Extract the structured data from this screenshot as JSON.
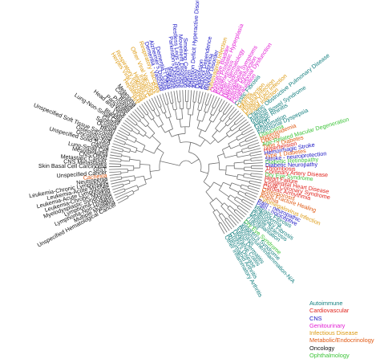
{
  "colors": {
    "Autoimmune": "#147f7f",
    "Cardiovascular": "#e0241d",
    "CNS": "#1a16c4",
    "Genitourinary": "#e31fd4",
    "Infectious Disease": "#dd9a12",
    "Metabolic/Endocrinology": "#e05a14",
    "Oncology": "#111111",
    "Ophthalmology": "#3ec43a"
  },
  "legend": [
    {
      "label": "Autoimmune",
      "category": "Autoimmune"
    },
    {
      "label": "Cardiovascular",
      "category": "Cardiovascular"
    },
    {
      "label": "CNS",
      "category": "CNS"
    },
    {
      "label": "Genitourinary",
      "category": "Genitourinary"
    },
    {
      "label": "Infectious Disease",
      "category": "Infectious Disease"
    },
    {
      "label": "Metabolic/Endocrinology",
      "category": "Metabolic/Endocrinology"
    },
    {
      "label": "Oncology",
      "category": "Oncology"
    },
    {
      "label": "Ophthalmology",
      "category": "Ophthalmology"
    }
  ],
  "leaves": [
    {
      "label": "Unspecified Hematological Cancer",
      "category": "Oncology"
    },
    {
      "label": "Multiple Myeloma",
      "category": "Oncology"
    },
    {
      "label": "Lymphoma-Non-Hodgkin",
      "category": "Oncology"
    },
    {
      "label": "Lymphoma-Hodgkin",
      "category": "Oncology"
    },
    {
      "label": "Myelodysplastic Syndromes",
      "category": "Oncology"
    },
    {
      "label": "Leukemia-Chronic Myeloid",
      "category": "Oncology"
    },
    {
      "label": "Leukemia-Acute Lymphocytic",
      "category": "Oncology"
    },
    {
      "label": "Leukemia-Acute Myeloid",
      "category": "Oncology"
    },
    {
      "label": "Leukemia-Chronic Lymphocytic",
      "category": "Oncology"
    },
    {
      "label": "Neutropenia",
      "category": "Oncology"
    },
    {
      "label": "Cachexia",
      "category": "Metabolic/Endocrinology"
    },
    {
      "label": "Unspecified Cancer",
      "category": "Oncology"
    },
    {
      "label": "GIST",
      "category": "Oncology"
    },
    {
      "label": "Skin Basal Cell Carcinoma",
      "category": "Oncology"
    },
    {
      "label": "CNS Metastases",
      "category": "Oncology"
    },
    {
      "label": "Metastatic Cancer",
      "category": "Oncology"
    },
    {
      "label": "CNS-Other",
      "category": "Oncology"
    },
    {
      "label": "Mesothelioma",
      "category": "Oncology"
    },
    {
      "label": "Lung-Small Cell",
      "category": "Oncology"
    },
    {
      "label": "Glioma",
      "category": "Oncology"
    },
    {
      "label": "Unspecified Solid Tumor",
      "category": "Oncology"
    },
    {
      "label": "Oncology-N/A",
      "category": "Oncology"
    },
    {
      "label": "Osteosarcoma",
      "category": "Oncology"
    },
    {
      "label": "Unspecified Soft Tissue Sarcoma",
      "category": "Oncology"
    },
    {
      "label": "Renal",
      "category": "Oncology"
    },
    {
      "label": "Ovarian",
      "category": "Oncology"
    },
    {
      "label": "Sarcoma",
      "category": "Oncology"
    },
    {
      "label": "Gastric",
      "category": "Oncology"
    },
    {
      "label": "Lung-Non-Small Cell",
      "category": "Oncology"
    },
    {
      "label": "Bladder",
      "category": "Oncology"
    },
    {
      "label": "Liver",
      "category": "Oncology"
    },
    {
      "label": "Head and Neck",
      "category": "Oncology"
    },
    {
      "label": "Pancreatic",
      "category": "Oncology"
    },
    {
      "label": "Prostate",
      "category": "Oncology"
    },
    {
      "label": "Breast",
      "category": "Oncology"
    },
    {
      "label": "Colorectal",
      "category": "Oncology"
    },
    {
      "label": "Melanoma",
      "category": "Oncology"
    },
    {
      "label": "HIV",
      "category": "Infectious Disease"
    },
    {
      "label": "Hepatitis B",
      "category": "Infectious Disease"
    },
    {
      "label": "Herpes Viral Vaccines",
      "category": "Infectious Disease"
    },
    {
      "label": "Respiratory Infections",
      "category": "Infectious Disease"
    },
    {
      "label": "Hepatitis C",
      "category": "Infectious Disease"
    },
    {
      "label": "Influenza",
      "category": "Infectious Disease"
    },
    {
      "label": "Other Viral Vaccines",
      "category": "Infectious Disease"
    },
    {
      "label": "RSV",
      "category": "Infectious Disease"
    },
    {
      "label": "Respiratory Vaccines",
      "category": "Infectious Disease"
    },
    {
      "label": "Dementia - Vascular",
      "category": "CNS"
    },
    {
      "label": "Alzheimer's Disease",
      "category": "CNS"
    },
    {
      "label": "Dementia - Other",
      "category": "CNS"
    },
    {
      "label": "Epilepsy",
      "category": "CNS"
    },
    {
      "label": "Migraine",
      "category": "CNS"
    },
    {
      "label": "Parkinson's Disease",
      "category": "CNS"
    },
    {
      "label": "Restless Legs Syndrome",
      "category": "CNS"
    },
    {
      "label": "Movement Disorders",
      "category": "CNS"
    },
    {
      "label": "Smoking Cessation",
      "category": "CNS"
    },
    {
      "label": "Autism",
      "category": "CNS"
    },
    {
      "label": "Attention Deficit Hyperactive Disorder",
      "category": "CNS"
    },
    {
      "label": "Anxiety",
      "category": "CNS"
    },
    {
      "label": "Depression",
      "category": "CNS"
    },
    {
      "label": "Alcohol Dependence",
      "category": "CNS"
    },
    {
      "label": "Schizophrenia",
      "category": "CNS"
    },
    {
      "label": "Bipolar Disorder",
      "category": "CNS"
    },
    {
      "label": "Vulvovaginal Infection",
      "category": "Infectious Disease"
    },
    {
      "label": "Overactive Bladder",
      "category": "Genitourinary"
    },
    {
      "label": "Benign Prostatic Hyperplasia",
      "category": "Genitourinary"
    },
    {
      "label": "Endometriosis",
      "category": "Genitourinary"
    },
    {
      "label": "Other - dermatology",
      "category": "Genitourinary"
    },
    {
      "label": "Hyperhidrosis",
      "category": "Genitourinary"
    },
    {
      "label": "Menopausal Symptoms",
      "category": "Genitourinary"
    },
    {
      "label": "Erectile Dysfunction",
      "category": "Genitourinary"
    },
    {
      "label": "Female Sexual Dysfunction",
      "category": "Genitourinary"
    },
    {
      "label": "Contraception",
      "category": "Genitourinary"
    },
    {
      "label": "Cystic Fibrosis",
      "category": "Autoimmune"
    },
    {
      "label": "Cystitis",
      "category": "Infectious Disease"
    },
    {
      "label": "Skin Infection",
      "category": "Infectious Disease"
    },
    {
      "label": "Hospital Infection",
      "category": "Infectious Disease"
    },
    {
      "label": "Urinary Tract Infection",
      "category": "Infectious Disease"
    },
    {
      "label": "Fungal Infection",
      "category": "Infectious Disease"
    },
    {
      "label": "Chronic Obstructive Pulmonary Disease",
      "category": "Autoimmune"
    },
    {
      "label": "Asthma",
      "category": "Autoimmune"
    },
    {
      "label": "Irritable Bowel Syndrome",
      "category": "Autoimmune"
    },
    {
      "label": "Allergic Rhinitis",
      "category": "Autoimmune"
    },
    {
      "label": "GERD",
      "category": "Autoimmune"
    },
    {
      "label": "Inflammation",
      "category": "Autoimmune"
    },
    {
      "label": "Functional Dyspepsia",
      "category": "Autoimmune"
    },
    {
      "label": "Glaucoma",
      "category": "Ophthalmology"
    },
    {
      "label": "Hyperlipidemia",
      "category": "Metabolic/Endocrinology"
    },
    {
      "label": "Obesity",
      "category": "Metabolic/Endocrinology"
    },
    {
      "label": "Age-Related Macular Degeneration",
      "category": "Ophthalmology"
    },
    {
      "label": "Type 2 Diabetes",
      "category": "Metabolic/Endocrinology"
    },
    {
      "label": "Hypertension",
      "category": "Cardiovascular"
    },
    {
      "label": "Hemorrhagic Stroke",
      "category": "CNS"
    },
    {
      "label": "Type 1 Diabetes",
      "category": "Metabolic/Endocrinology"
    },
    {
      "label": "Stroke - neuroprotection",
      "category": "CNS"
    },
    {
      "label": "Diabetic Retinopathy",
      "category": "Ophthalmology"
    },
    {
      "label": "Diabetic Neuropathy",
      "category": "CNS"
    },
    {
      "label": "Thrombosis",
      "category": "Cardiovascular"
    },
    {
      "label": "Coronary Artery Disease",
      "category": "Cardiovascular"
    },
    {
      "label": "Dry Eye Syndrome",
      "category": "Ophthalmology"
    },
    {
      "label": "Heart Failure",
      "category": "Cardiovascular"
    },
    {
      "label": "Congenital Heart Disease",
      "category": "Cardiovascular"
    },
    {
      "label": "Acute Coronary Syndrome",
      "category": "Cardiovascular"
    },
    {
      "label": "Cardiac Arrhythmia",
      "category": "Cardiovascular"
    },
    {
      "label": "Osteoporosis",
      "category": "Metabolic/Endocrinology"
    },
    {
      "label": "Bone Fracture Healing",
      "category": "Metabolic/Endocrinology"
    },
    {
      "label": "Anemia",
      "category": "Metabolic/Endocrinology"
    },
    {
      "label": "Cytomegalovirus Infection",
      "category": "Infectious Disease"
    },
    {
      "label": "Pain - neuropathic",
      "category": "CNS"
    },
    {
      "label": "Pain - nociceptive",
      "category": "CNS"
    },
    {
      "label": "Hepatic Fibrosis",
      "category": "Autoimmune"
    },
    {
      "label": "Scleroderma",
      "category": "Autoimmune"
    },
    {
      "label": "Pulmonary Fibrosis",
      "category": "Autoimmune"
    },
    {
      "label": "Multiple Sclerosis",
      "category": "Autoimmune"
    },
    {
      "label": "Transplantation",
      "category": "Autoimmune"
    },
    {
      "label": "Lupus",
      "category": "Autoimmune"
    },
    {
      "label": "Dry Eye Syndrome",
      "category": "Ophthalmology"
    },
    {
      "label": "Sjogren's Syndrome",
      "category": "Autoimmune"
    },
    {
      "label": "Autoimmune/Inflammation-N/A",
      "category": "Autoimmune"
    },
    {
      "label": "Psoriasis",
      "category": "Autoimmune"
    },
    {
      "label": "Atopic Dermatitis",
      "category": "Autoimmune"
    },
    {
      "label": "Ulcerative Colitis",
      "category": "Autoimmune"
    },
    {
      "label": "Crohn's Disease",
      "category": "Autoimmune"
    },
    {
      "label": "Rheumatoid Arthritis",
      "category": "Autoimmune"
    },
    {
      "label": "Other Inflammatory Arthritis",
      "category": "Autoimmune"
    }
  ]
}
